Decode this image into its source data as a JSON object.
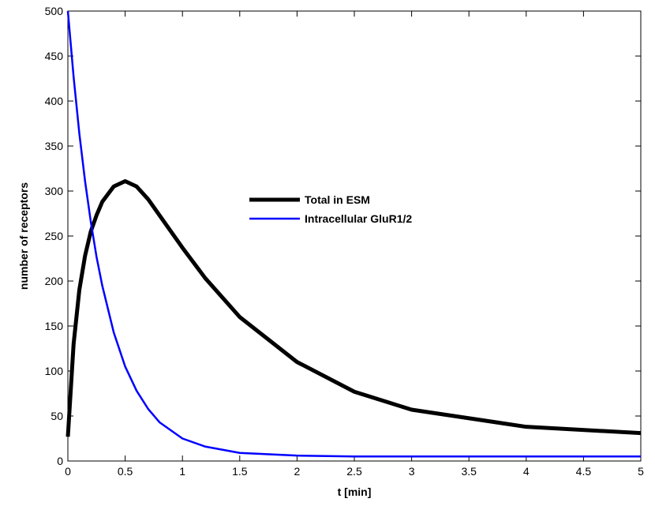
{
  "chart_data": {
    "type": "line",
    "x_label": "t [min]",
    "y_label": "number of receptors",
    "x": [
      0,
      0.05,
      0.1,
      0.15,
      0.2,
      0.25,
      0.3,
      0.4,
      0.5,
      0.6,
      0.7,
      0.8,
      1,
      1.2,
      1.5,
      2,
      2.5,
      3,
      4,
      5
    ],
    "series": [
      {
        "name": "Total in ESM",
        "color": "#000000",
        "width": 5,
        "values": [
          27,
          130,
          190,
          228,
          255,
          273,
          288,
          305,
          311,
          305,
          291,
          273,
          237,
          203,
          160,
          110,
          77,
          57,
          38,
          31
        ]
      },
      {
        "name": "Intracellular GluR1/2",
        "color": "#0000ff",
        "width": 2.5,
        "values": [
          500,
          427,
          364,
          311,
          266,
          227,
          195,
          143,
          105,
          78,
          58,
          43,
          25,
          16,
          9,
          6,
          5,
          5,
          5,
          5
        ]
      }
    ],
    "xlim": [
      0,
      5
    ],
    "xticks": [
      0,
      0.5,
      1,
      1.5,
      2,
      2.5,
      3,
      3.5,
      4,
      4.5,
      5
    ],
    "ylim": [
      0,
      500
    ],
    "yticks": [
      0,
      50,
      100,
      150,
      200,
      250,
      300,
      350,
      400,
      450,
      500
    ],
    "grid": false,
    "legend_position": "center"
  }
}
